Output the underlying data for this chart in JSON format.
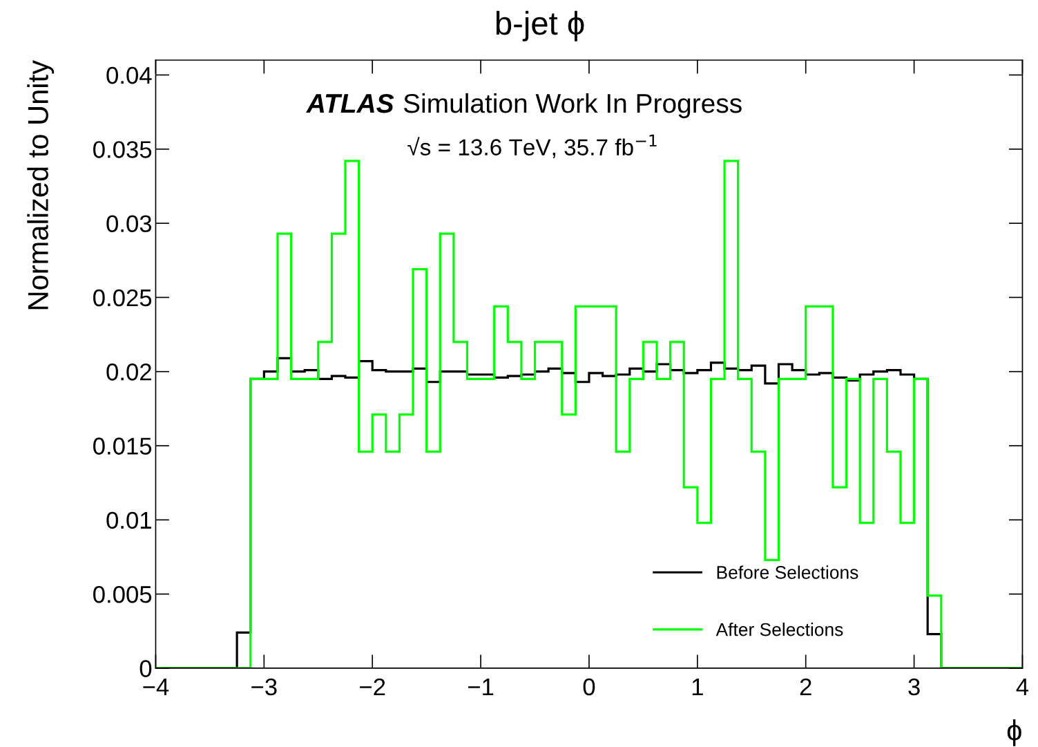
{
  "chart_data": {
    "type": "histogram",
    "title": "b-jet ϕ",
    "xlabel": "ϕ",
    "ylabel": "Normalized to Unity",
    "annotations": [
      "ATLAS Simulation Work In Progress",
      "√s = 13.6 TeV, 35.7 fb$^{−1}$"
    ],
    "bins": [
      -4,
      -3.25,
      -3.125,
      -3,
      -2.875,
      -2.75,
      -2.625,
      -2.5,
      -2.375,
      -2.25,
      -2.125,
      -2,
      -1.875,
      -1.75,
      -1.625,
      -1.5,
      -1.375,
      -1.25,
      -1.125,
      -1,
      -0.875,
      -0.75,
      -0.625,
      -0.5,
      -0.375,
      -0.25,
      -0.125,
      0,
      0.125,
      0.25,
      0.375,
      0.5,
      0.625,
      0.75,
      0.875,
      1,
      1.125,
      1.25,
      1.375,
      1.5,
      1.625,
      1.75,
      1.875,
      2,
      2.125,
      2.25,
      2.375,
      2.5,
      2.625,
      2.75,
      2.875,
      3,
      3.125,
      3.25,
      4
    ],
    "series": [
      {
        "name": "Before Selections",
        "color": "#000000",
        "values": [
          0,
          0.0024,
          0.0195,
          0.02,
          0.0209,
          0.02,
          0.0201,
          0.0195,
          0.0197,
          0.0196,
          0.0207,
          0.0201,
          0.02,
          0.02,
          0.0202,
          0.0193,
          0.02,
          0.02,
          0.0198,
          0.0198,
          0.0196,
          0.0197,
          0.0198,
          0.02,
          0.0202,
          0.0199,
          0.0193,
          0.0199,
          0.0197,
          0.0198,
          0.0202,
          0.02,
          0.0205,
          0.0201,
          0.0199,
          0.0201,
          0.0206,
          0.0202,
          0.0201,
          0.0204,
          0.0192,
          0.0205,
          0.0201,
          0.0198,
          0.0199,
          0.0196,
          0.0194,
          0.0198,
          0.02,
          0.0201,
          0.0198,
          0.0195,
          0.0023,
          0
        ]
      },
      {
        "name": "After Selections",
        "color": "#00ff00",
        "values": [
          0,
          0,
          0.0195,
          0.0195,
          0.0293,
          0.0195,
          0.0195,
          0.022,
          0.0293,
          0.0342,
          0.0146,
          0.0171,
          0.0146,
          0.0171,
          0.0269,
          0.0146,
          0.0293,
          0.022,
          0.0195,
          0.0195,
          0.0244,
          0.022,
          0.0195,
          0.022,
          0.022,
          0.0171,
          0.0244,
          0.0244,
          0.0244,
          0.0146,
          0.0195,
          0.022,
          0.0195,
          0.022,
          0.0122,
          0.0098,
          0.0195,
          0.0342,
          0.0195,
          0.0146,
          0.0073,
          0.0195,
          0.0195,
          0.0244,
          0.0244,
          0.0122,
          0.0195,
          0.0098,
          0.0195,
          0.0146,
          0.0098,
          0.0195,
          0.0049,
          0
        ]
      }
    ],
    "xlim": [
      -4,
      4
    ],
    "xticks": [
      {
        "value": -4,
        "label": "−4"
      },
      {
        "value": -3,
        "label": "−3"
      },
      {
        "value": -2,
        "label": "−2"
      },
      {
        "value": -1,
        "label": "−1"
      },
      0,
      1,
      2,
      3,
      4
    ],
    "ylim": [
      0,
      0.041
    ],
    "yticks": [
      0,
      0.005,
      0.01,
      0.015,
      0.02,
      0.025,
      0.03,
      0.035,
      0.04
    ],
    "legend": "bottom right",
    "grid": false
  }
}
